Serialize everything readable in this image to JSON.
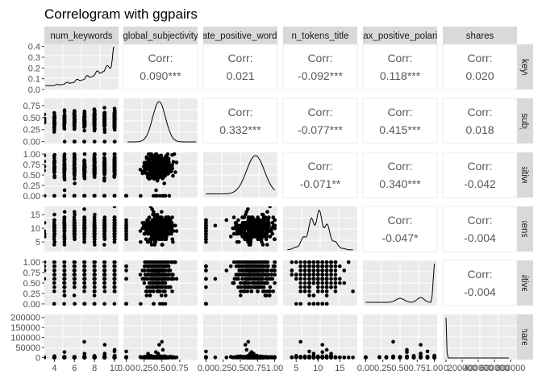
{
  "chart_data": {
    "type": "scatter",
    "title": "Correlogram with ggpairs",
    "variables": [
      "num_keywords",
      "global_subjectivity",
      "rate_positive_words",
      "n_tokens_title",
      "max_positive_polarity",
      "shares"
    ],
    "strip_labels_top": [
      "num_keywords",
      "global_subjectivity",
      "rate_positive_words",
      "n_tokens_title",
      "max_positive_polarity",
      "shares"
    ],
    "strip_labels_right": [
      "num_keywords",
      "global_subjectivity",
      "rate_positive_words",
      "n_tokens_title",
      "max_positive_polarity",
      "shares"
    ],
    "axis_ticks": {
      "num_keywords": [
        4,
        6,
        8,
        10
      ],
      "global_subjectivity": [
        "0.00",
        "0.25",
        "0.50",
        "0.75"
      ],
      "rate_positive_words": [
        "0.00",
        "0.25",
        "0.50",
        "0.75",
        "1.00"
      ],
      "n_tokens_title": [
        5,
        10,
        15
      ],
      "max_positive_polarity": [
        "0.00",
        "0.25",
        "0.50",
        "0.75",
        "1.00"
      ],
      "shares": [
        0,
        200000,
        400000,
        600000,
        800000
      ]
    },
    "density_y_ticks": [
      "0.0",
      "0.1",
      "0.2",
      "0.3",
      "0.4"
    ],
    "y_ticks": {
      "global_subjectivity": [
        "0.00",
        "0.25",
        "0.50",
        "0.75"
      ],
      "rate_positive_words": [
        "0.00",
        "0.25",
        "0.50",
        "0.75",
        "1.00"
      ],
      "n_tokens_title": [
        "5",
        "10",
        "15"
      ],
      "max_positive_polarity": [
        "0.00",
        "0.25",
        "0.50",
        "0.75",
        "1.00"
      ],
      "shares": [
        "0",
        "50000",
        "100000",
        "150000",
        "200000"
      ]
    },
    "correlation_label": "Corr:",
    "correlations": [
      {
        "row": 0,
        "col": 1,
        "value": "0.090***"
      },
      {
        "row": 0,
        "col": 2,
        "value": "0.021"
      },
      {
        "row": 0,
        "col": 3,
        "value": "-0.092***"
      },
      {
        "row": 0,
        "col": 4,
        "value": "0.118***"
      },
      {
        "row": 0,
        "col": 5,
        "value": "0.020"
      },
      {
        "row": 1,
        "col": 2,
        "value": "0.332***"
      },
      {
        "row": 1,
        "col": 3,
        "value": "-0.077***"
      },
      {
        "row": 1,
        "col": 4,
        "value": "0.415***"
      },
      {
        "row": 1,
        "col": 5,
        "value": "0.018"
      },
      {
        "row": 2,
        "col": 3,
        "value": "-0.071**"
      },
      {
        "row": 2,
        "col": 4,
        "value": "0.340***"
      },
      {
        "row": 2,
        "col": 5,
        "value": "-0.042"
      },
      {
        "row": 3,
        "col": 4,
        "value": "-0.047*"
      },
      {
        "row": 3,
        "col": 5,
        "value": "-0.004"
      },
      {
        "row": 4,
        "col": 5,
        "value": "-0.004"
      }
    ],
    "grid": true,
    "panel_background": "#ebebeb",
    "strip_background": "#d9d9d9",
    "point_color": "#000000"
  }
}
